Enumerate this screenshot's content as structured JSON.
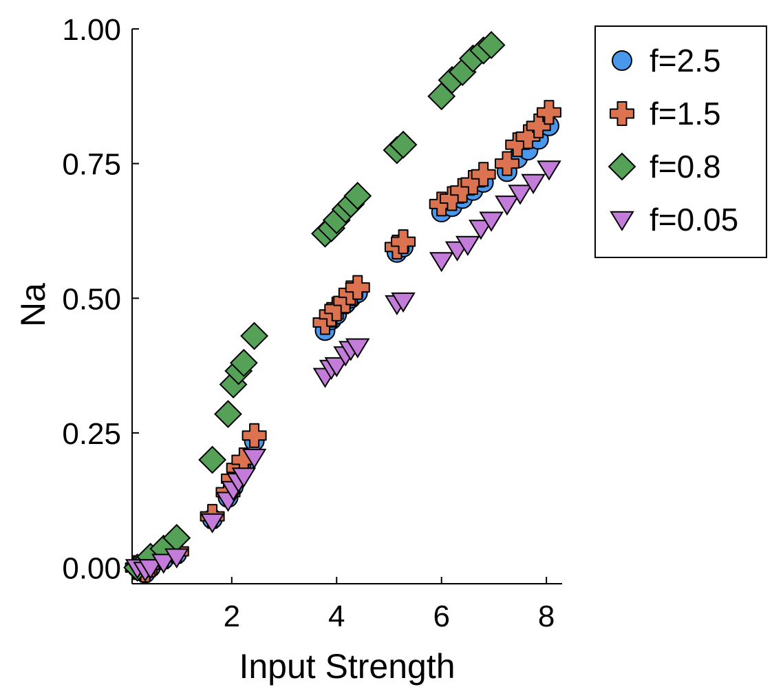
{
  "chart_data": {
    "type": "scatter",
    "title": "",
    "xlabel": "Input Strength",
    "ylabel": "Na",
    "xlim": [
      0.1,
      8.3
    ],
    "ylim": [
      -0.03,
      1.0
    ],
    "x_ticks": [
      2,
      4,
      6,
      8
    ],
    "x_tick_labels": [
      "2",
      "4",
      "6",
      "8"
    ],
    "y_ticks": [
      0.0,
      0.25,
      0.5,
      0.75,
      1.0
    ],
    "y_tick_labels": [
      "0.00",
      "0.25",
      "0.50",
      "0.75",
      "1.00"
    ],
    "grid": false,
    "legend_position": "outside-right-top",
    "series": [
      {
        "name": "f=2.5",
        "marker": "circle",
        "color": "#4A98EC",
        "x": [
          0.2,
          0.35,
          0.45,
          0.7,
          0.95,
          1.63,
          1.93,
          2.03,
          2.13,
          2.23,
          2.43,
          3.78,
          3.9,
          4.0,
          4.17,
          4.27,
          4.4,
          5.15,
          5.27,
          6.0,
          6.2,
          6.4,
          6.6,
          6.8,
          7.25,
          7.45,
          7.65,
          7.85,
          8.05
        ],
        "y": [
          0.0,
          -0.01,
          0.0,
          0.015,
          0.025,
          0.09,
          0.13,
          0.15,
          0.17,
          0.19,
          0.235,
          0.44,
          0.46,
          0.47,
          0.49,
          0.5,
          0.51,
          0.585,
          0.595,
          0.66,
          0.67,
          0.685,
          0.7,
          0.715,
          0.735,
          0.76,
          0.775,
          0.795,
          0.82
        ]
      },
      {
        "name": "f=1.5",
        "marker": "plus",
        "color": "#DB7350",
        "x": [
          0.2,
          0.35,
          0.45,
          0.7,
          0.95,
          1.63,
          1.93,
          2.03,
          2.13,
          2.23,
          2.43,
          3.78,
          3.9,
          4.0,
          4.17,
          4.27,
          4.4,
          5.15,
          5.27,
          6.0,
          6.2,
          6.4,
          6.6,
          6.8,
          7.25,
          7.45,
          7.65,
          7.85,
          8.05
        ],
        "y": [
          0.0,
          -0.005,
          0.005,
          0.02,
          0.03,
          0.095,
          0.14,
          0.165,
          0.185,
          0.2,
          0.245,
          0.455,
          0.47,
          0.48,
          0.495,
          0.51,
          0.52,
          0.595,
          0.605,
          0.675,
          0.685,
          0.7,
          0.715,
          0.73,
          0.75,
          0.785,
          0.8,
          0.82,
          0.845
        ]
      },
      {
        "name": "f=0.8",
        "marker": "diamond",
        "color": "#55A157",
        "x": [
          0.2,
          0.35,
          0.45,
          0.7,
          0.95,
          1.63,
          1.93,
          2.03,
          2.13,
          2.23,
          2.43,
          3.78,
          3.9,
          4.0,
          4.17,
          4.27,
          4.4,
          5.15,
          5.27,
          6.0,
          6.2,
          6.4,
          6.6,
          6.8,
          6.95
        ],
        "y": [
          0.0,
          0.01,
          0.02,
          0.035,
          0.055,
          0.2,
          0.285,
          0.34,
          0.365,
          0.38,
          0.43,
          0.62,
          0.63,
          0.645,
          0.665,
          0.675,
          0.69,
          0.775,
          0.785,
          0.875,
          0.905,
          0.92,
          0.945,
          0.96,
          0.97
        ]
      },
      {
        "name": "f=0.05",
        "marker": "triangle-down",
        "color": "#C37CDA",
        "x": [
          0.2,
          0.35,
          0.45,
          0.7,
          0.95,
          1.63,
          1.93,
          2.03,
          2.13,
          2.23,
          2.43,
          3.78,
          3.9,
          4.0,
          4.17,
          4.27,
          4.4,
          5.15,
          5.27,
          6.0,
          6.3,
          6.5,
          6.75,
          6.95,
          7.25,
          7.5,
          7.75,
          8.05
        ],
        "y": [
          0.0,
          -0.005,
          0.0,
          0.01,
          0.02,
          0.085,
          0.125,
          0.145,
          0.16,
          0.17,
          0.205,
          0.355,
          0.37,
          0.375,
          0.395,
          0.405,
          0.41,
          0.49,
          0.495,
          0.57,
          0.59,
          0.6,
          0.63,
          0.645,
          0.675,
          0.695,
          0.715,
          0.74
        ]
      }
    ]
  }
}
